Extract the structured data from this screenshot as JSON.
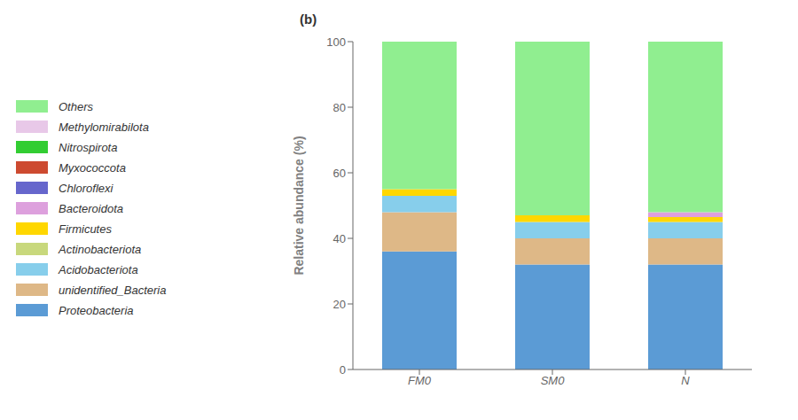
{
  "chart_data": {
    "type": "bar",
    "title": "(b)",
    "ylabel": "Relative abundance (%)",
    "categories": [
      "FM0",
      "SM0",
      "N"
    ],
    "ylim": [
      0,
      100
    ],
    "yticks": [
      0,
      20,
      40,
      60,
      80,
      100
    ],
    "stacked": true,
    "grid": false,
    "legend": "left",
    "series": [
      {
        "name": "Proteobacteria",
        "color": "#5B9BD5",
        "values": [
          36,
          32,
          32
        ]
      },
      {
        "name": "unidentified_Bacteria",
        "color": "#DEB887",
        "values": [
          12,
          8,
          8
        ]
      },
      {
        "name": "Acidobacteriota",
        "color": "#87CEEB",
        "values": [
          5,
          5,
          5
        ]
      },
      {
        "name": "Actinobacteriota",
        "color": "#C8D87C",
        "values": [
          0,
          0,
          0
        ]
      },
      {
        "name": "Firmicutes",
        "color": "#FFD700",
        "values": [
          2,
          2,
          1.5
        ]
      },
      {
        "name": "Bacteroidota",
        "color": "#DDA0DD",
        "values": [
          0,
          0,
          1.5
        ]
      },
      {
        "name": "Chloroflexi",
        "color": "#6666CC",
        "values": [
          0,
          0,
          0
        ]
      },
      {
        "name": "Myxococcota",
        "color": "#CD4A30",
        "values": [
          0,
          0,
          0
        ]
      },
      {
        "name": "Nitrospirota",
        "color": "#32CD32",
        "values": [
          0,
          0,
          0
        ]
      },
      {
        "name": "Methylomirabilota",
        "color": "#E8C8E8",
        "values": [
          0,
          0,
          0
        ]
      },
      {
        "name": "Others",
        "color": "#90EE90",
        "values": [
          45,
          53,
          52
        ]
      }
    ]
  }
}
